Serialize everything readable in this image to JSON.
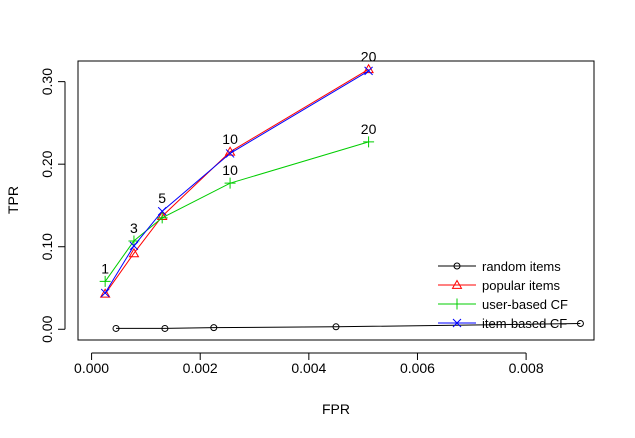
{
  "chart_data": {
    "type": "line",
    "title": "",
    "xlabel": "FPR",
    "ylabel": "TPR",
    "xlim": [
      -0.00025,
      0.00925
    ],
    "ylim": [
      -0.013,
      0.325
    ],
    "x_ticks": [
      0.0,
      0.002,
      0.004,
      0.006,
      0.008
    ],
    "x_tick_labels": [
      "0.000",
      "0.002",
      "0.004",
      "0.006",
      "0.008"
    ],
    "y_ticks": [
      0.0,
      0.1,
      0.2,
      0.3
    ],
    "y_tick_labels": [
      "0.00",
      "0.10",
      "0.20",
      "0.30"
    ],
    "grid": false,
    "legend_position": "bottom-right",
    "series": [
      {
        "name": "random items",
        "color": "#000000",
        "marker": "circle",
        "points": [
          {
            "x": 0.00045,
            "y": 0.001
          },
          {
            "x": 0.00135,
            "y": 0.001
          },
          {
            "x": 0.00225,
            "y": 0.002
          },
          {
            "x": 0.0045,
            "y": 0.003
          },
          {
            "x": 0.009,
            "y": 0.007
          }
        ]
      },
      {
        "name": "popular items",
        "color": "#ff0000",
        "marker": "triangle",
        "points": [
          {
            "x": 0.00025,
            "y": 0.043
          },
          {
            "x": 0.00078,
            "y": 0.092
          },
          {
            "x": 0.0013,
            "y": 0.137
          },
          {
            "x": 0.00255,
            "y": 0.215
          },
          {
            "x": 0.0051,
            "y": 0.315
          }
        ]
      },
      {
        "name": "user-based CF",
        "color": "#00cd00",
        "marker": "plus",
        "points": [
          {
            "x": 0.00025,
            "y": 0.058
          },
          {
            "x": 0.00078,
            "y": 0.107
          },
          {
            "x": 0.0013,
            "y": 0.135
          },
          {
            "x": 0.00255,
            "y": 0.177
          },
          {
            "x": 0.0051,
            "y": 0.227
          }
        ]
      },
      {
        "name": "item-based CF",
        "color": "#0000ff",
        "marker": "x",
        "points": [
          {
            "x": 0.00025,
            "y": 0.044
          },
          {
            "x": 0.00078,
            "y": 0.101
          },
          {
            "x": 0.0013,
            "y": 0.143
          },
          {
            "x": 0.00255,
            "y": 0.213
          },
          {
            "x": 0.0051,
            "y": 0.313
          }
        ]
      }
    ],
    "annotations": [
      {
        "text": "1",
        "x": 0.00025,
        "y": 0.058
      },
      {
        "text": "3",
        "x": 0.00078,
        "y": 0.107
      },
      {
        "text": "5",
        "x": 0.0013,
        "y": 0.143
      },
      {
        "text": "10",
        "x": 0.00255,
        "y": 0.215
      },
      {
        "text": "20",
        "x": 0.0051,
        "y": 0.315
      },
      {
        "text": "10",
        "x": 0.00255,
        "y": 0.177
      },
      {
        "text": "20",
        "x": 0.0051,
        "y": 0.227
      }
    ]
  }
}
